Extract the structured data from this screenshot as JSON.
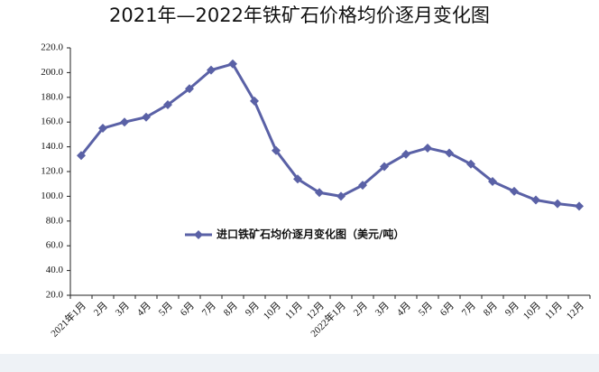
{
  "chart_data": {
    "type": "line",
    "title": "2021年—2022年铁矿石价格均价逐月变化图",
    "categories": [
      "2021年1月",
      "2月",
      "3月",
      "4月",
      "5月",
      "6月",
      "7月",
      "8月",
      "9月",
      "10月",
      "11月",
      "12月",
      "2022年1月",
      "2月",
      "3月",
      "4月",
      "5月",
      "6月",
      "7月",
      "8月",
      "9月",
      "10月",
      "11月",
      "12月"
    ],
    "series": [
      {
        "name": "进口铁矿石均价逐月变化图（美元/吨）",
        "color": "#5a61a6",
        "values": [
          133,
          155,
          160,
          164,
          174,
          187,
          202,
          207,
          177,
          137,
          114,
          103,
          100,
          109,
          124,
          134,
          139,
          135,
          126,
          112,
          104,
          97,
          94,
          92
        ]
      }
    ],
    "ylim": [
      20,
      220
    ],
    "yticks": [
      {
        "value": 20,
        "label": "20.0"
      },
      {
        "value": 40,
        "label": "40.0"
      },
      {
        "value": 60,
        "label": "60.0"
      },
      {
        "value": 80,
        "label": "80.0"
      },
      {
        "value": 100,
        "label": "100.0"
      },
      {
        "value": 120,
        "label": "120.0"
      },
      {
        "value": 140,
        "label": "140.0"
      },
      {
        "value": 160,
        "label": "160.0"
      },
      {
        "value": 180,
        "label": "180.0"
      },
      {
        "value": 200,
        "label": "200.0"
      },
      {
        "value": 220,
        "label": "220.0"
      }
    ],
    "grid": false
  }
}
